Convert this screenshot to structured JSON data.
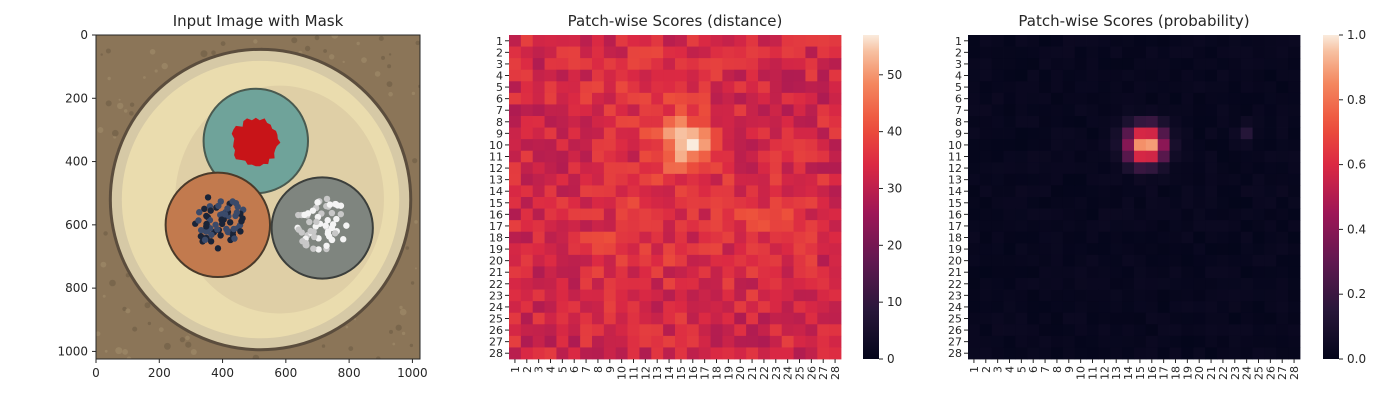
{
  "chart_data": [
    {
      "type": "image",
      "title": "Input Image with Mask",
      "xlim": [
        0,
        1024
      ],
      "ylim": [
        1024,
        0
      ],
      "xticks": [
        0,
        200,
        400,
        600,
        800,
        1000
      ],
      "yticks": [
        0,
        200,
        400,
        600,
        800,
        1000
      ],
      "tick_labels_x": [
        "0",
        "200",
        "400",
        "600",
        "800",
        "1000"
      ],
      "tick_labels_y": [
        "0",
        "200",
        "400",
        "600",
        "800",
        "1000"
      ],
      "objects": [
        {
          "label": "outer-ring",
          "cx": 520,
          "cy": 520,
          "r": 470,
          "color": "#d6c9a6"
        },
        {
          "label": "cable-green",
          "cx": 505,
          "cy": 335,
          "r": 165,
          "color": "#6fa39a"
        },
        {
          "label": "mask",
          "cx": 505,
          "cy": 340,
          "r": 75,
          "color": "#c81418"
        },
        {
          "label": "cable-orange",
          "cx": 385,
          "cy": 600,
          "r": 165,
          "color": "#c27a4e"
        },
        {
          "label": "cable-gray",
          "cx": 715,
          "cy": 610,
          "r": 160,
          "color": "#7f857f"
        }
      ]
    },
    {
      "type": "heatmap",
      "title": "Patch-wise Scores (distance)",
      "rows": 28,
      "cols": 28,
      "x_tick_labels": [
        "1",
        "2",
        "3",
        "4",
        "5",
        "6",
        "7",
        "8",
        "9",
        "10",
        "11",
        "12",
        "13",
        "14",
        "15",
        "16",
        "17",
        "18",
        "19",
        "20",
        "21",
        "22",
        "23",
        "24",
        "25",
        "26",
        "27",
        "28"
      ],
      "y_tick_labels": [
        "1",
        "2",
        "3",
        "4",
        "5",
        "6",
        "7",
        "8",
        "9",
        "10",
        "11",
        "12",
        "13",
        "14",
        "15",
        "16",
        "17",
        "18",
        "19",
        "20",
        "21",
        "22",
        "23",
        "24",
        "25",
        "26",
        "27",
        "28"
      ],
      "vmin": 0,
      "vmax": 57,
      "colorbar_ticks": [
        0,
        10,
        20,
        30,
        40,
        50
      ],
      "colorbar_tick_labels": [
        "0",
        "10",
        "20",
        "30",
        "40",
        "50"
      ],
      "colormap": "rocket",
      "base_value": 33,
      "hotspots": [
        {
          "row": 10,
          "col": 15.5,
          "sigma": 1.6,
          "peak": 22
        },
        {
          "row": 18,
          "col": 11,
          "sigma": 3.0,
          "peak": 4
        },
        {
          "row": 17,
          "col": 22,
          "sigma": 3.0,
          "peak": 4
        },
        {
          "row": 6,
          "col": 12,
          "sigma": 4.0,
          "peak": 3
        }
      ]
    },
    {
      "type": "heatmap",
      "title": "Patch-wise Scores (probability)",
      "rows": 28,
      "cols": 28,
      "x_tick_labels": [
        "1",
        "2",
        "3",
        "4",
        "5",
        "6",
        "7",
        "8",
        "9",
        "10",
        "11",
        "12",
        "13",
        "14",
        "15",
        "16",
        "17",
        "18",
        "19",
        "20",
        "21",
        "22",
        "23",
        "24",
        "25",
        "26",
        "27",
        "28"
      ],
      "y_tick_labels": [
        "1",
        "2",
        "3",
        "4",
        "5",
        "6",
        "7",
        "8",
        "9",
        "10",
        "11",
        "12",
        "13",
        "14",
        "15",
        "16",
        "17",
        "18",
        "19",
        "20",
        "21",
        "22",
        "23",
        "24",
        "25",
        "26",
        "27",
        "28"
      ],
      "vmin": 0,
      "vmax": 1,
      "colorbar_ticks": [
        0,
        0.2,
        0.4,
        0.6,
        0.8,
        1.0
      ],
      "colorbar_tick_labels": [
        "0.0",
        "0.2",
        "0.4",
        "0.6",
        "0.8",
        "1.0"
      ],
      "colormap": "rocket",
      "base_value": 0.02,
      "hotspots": [
        {
          "row": 10,
          "col": 15.5,
          "sigma": 1.1,
          "peak": 0.95
        },
        {
          "row": 9,
          "col": 24,
          "sigma": 0.5,
          "peak": 0.12
        }
      ]
    }
  ]
}
